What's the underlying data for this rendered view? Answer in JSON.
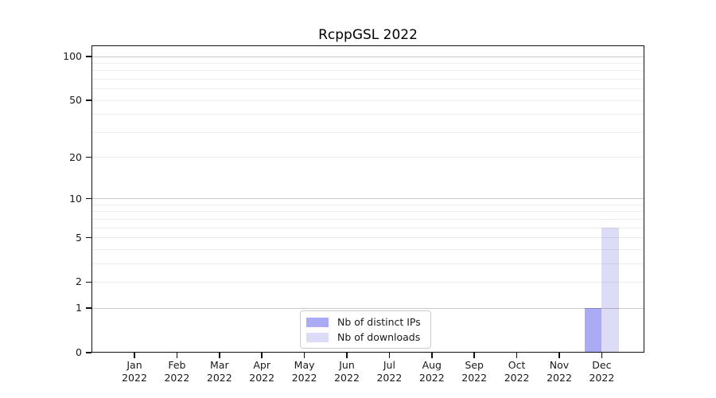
{
  "chart_data": {
    "type": "bar",
    "title": "RcppGSL 2022",
    "categories": [
      {
        "month": "Jan",
        "year": "2022"
      },
      {
        "month": "Feb",
        "year": "2022"
      },
      {
        "month": "Mar",
        "year": "2022"
      },
      {
        "month": "Apr",
        "year": "2022"
      },
      {
        "month": "May",
        "year": "2022"
      },
      {
        "month": "Jun",
        "year": "2022"
      },
      {
        "month": "Jul",
        "year": "2022"
      },
      {
        "month": "Aug",
        "year": "2022"
      },
      {
        "month": "Sep",
        "year": "2022"
      },
      {
        "month": "Oct",
        "year": "2022"
      },
      {
        "month": "Nov",
        "year": "2022"
      },
      {
        "month": "Dec",
        "year": "2022"
      }
    ],
    "series": [
      {
        "name": "Nb of distinct IPs",
        "color": "#aaaaf5",
        "values": [
          0,
          0,
          0,
          0,
          0,
          0,
          0,
          0,
          0,
          0,
          0,
          1
        ]
      },
      {
        "name": "Nb of downloads",
        "color": "#dcdcf6",
        "values": [
          0,
          0,
          0,
          0,
          0,
          0,
          0,
          0,
          0,
          0,
          0,
          6
        ]
      }
    ],
    "xlabel": "",
    "ylabel": "",
    "y_axis": {
      "scale": "log1p",
      "tick_labels": [
        0,
        1,
        2,
        5,
        10,
        20,
        50,
        100
      ],
      "minor_gridlines": [
        2,
        3,
        4,
        5,
        6,
        7,
        8,
        9,
        20,
        30,
        40,
        50,
        60,
        70,
        80,
        90
      ],
      "major_gridlines": [
        1,
        10,
        100
      ]
    },
    "legend": {
      "position": "bottom-center"
    },
    "grid": true,
    "background_color": "#ffffff"
  }
}
